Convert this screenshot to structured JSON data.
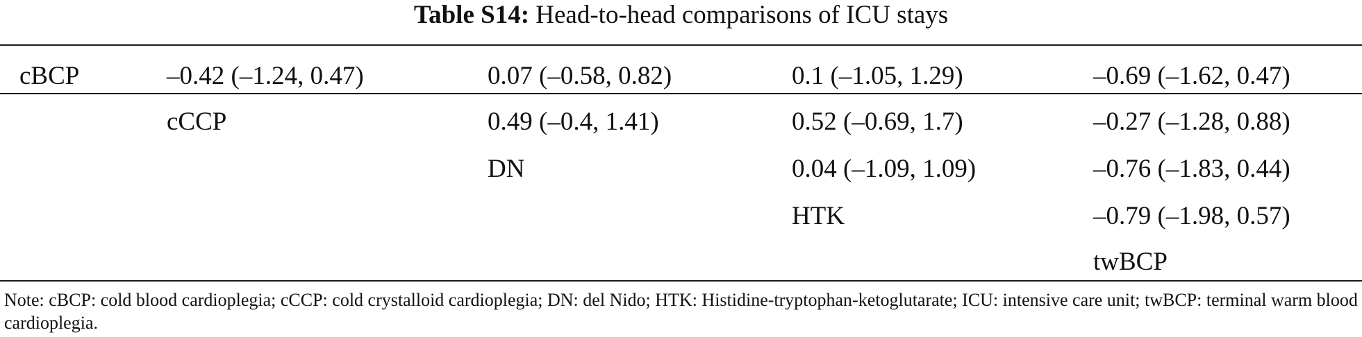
{
  "caption": {
    "label": "Table S14:",
    "text": "Head-to-head comparisons of ICU stays"
  },
  "table": {
    "rows": [
      [
        "cBCP",
        "–0.42 (–1.24, 0.47)",
        "0.07 (–0.58, 0.82)",
        "0.1 (–1.05, 1.29)",
        "–0.69 (–1.62, 0.47)"
      ],
      [
        "",
        "cCCP",
        "0.49 (–0.4, 1.41)",
        "0.52 (–0.69, 1.7)",
        "–0.27 (–1.28, 0.88)"
      ],
      [
        "",
        "",
        "DN",
        "0.04 (–1.09, 1.09)",
        "–0.76 (–1.83, 0.44)"
      ],
      [
        "",
        "",
        "",
        "HTK",
        "–0.79 (–1.98, 0.57)"
      ],
      [
        "",
        "",
        "",
        "",
        "twBCP"
      ]
    ]
  },
  "note": "Note: cBCP: cold blood cardioplegia; cCCP: cold crystalloid cardioplegia; DN: del Nido; HTK: Histidine-tryptophan-ketoglutarate; ICU: intensive care unit; twBCP: terminal warm blood cardioplegia."
}
